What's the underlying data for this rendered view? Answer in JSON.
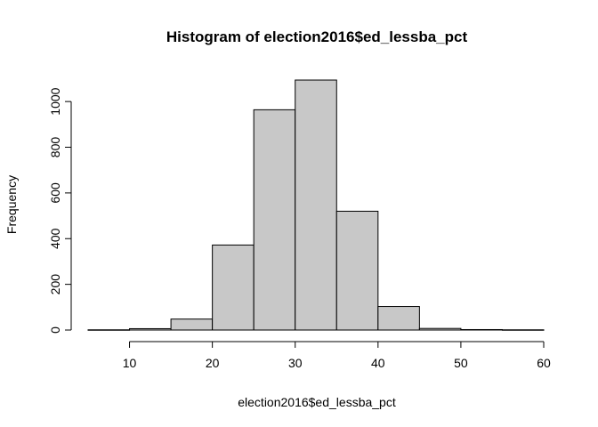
{
  "chart_data": {
    "type": "bar",
    "title": "Histogram of election2016$ed_lessba_pct",
    "xlabel": "election2016$ed_lessba_pct",
    "ylabel": "Frequency",
    "bins": [
      {
        "from": 5,
        "to": 10,
        "value": 1
      },
      {
        "from": 10,
        "to": 15,
        "value": 6
      },
      {
        "from": 15,
        "to": 20,
        "value": 48
      },
      {
        "from": 20,
        "to": 25,
        "value": 372
      },
      {
        "from": 25,
        "to": 30,
        "value": 964
      },
      {
        "from": 30,
        "to": 35,
        "value": 1094
      },
      {
        "from": 35,
        "to": 40,
        "value": 520
      },
      {
        "from": 40,
        "to": 45,
        "value": 103
      },
      {
        "from": 45,
        "to": 50,
        "value": 7
      },
      {
        "from": 50,
        "to": 55,
        "value": 2
      },
      {
        "from": 55,
        "to": 60,
        "value": 1
      }
    ],
    "xlim": [
      5,
      60
    ],
    "ylim": [
      0,
      1094
    ],
    "x_ticks": [
      "10",
      "20",
      "30",
      "40",
      "50",
      "60"
    ],
    "y_ticks": [
      "0",
      "200",
      "400",
      "600",
      "800",
      "1000"
    ],
    "bar_color": "#c8c8c8",
    "grid": false,
    "legend": "none"
  }
}
